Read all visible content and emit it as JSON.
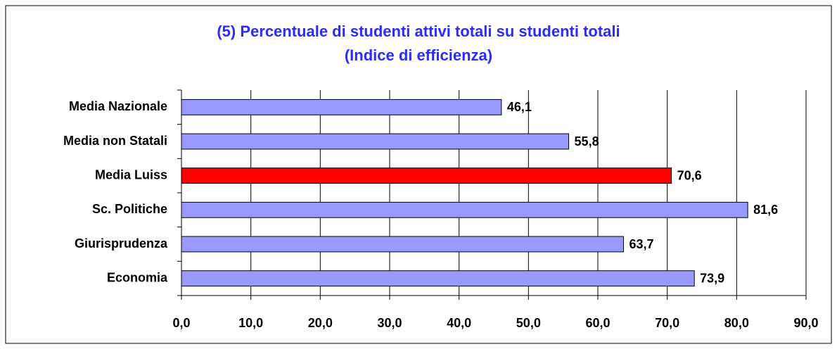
{
  "chart_data": {
    "type": "bar",
    "orientation": "horizontal",
    "title": [
      "(5) Percentuale di studenti attivi totali su studenti totali",
      "(Indice di efficienza)"
    ],
    "categories": [
      "Media Nazionale",
      "Media non Statali",
      "Media Luiss",
      "Sc. Politiche",
      "Giurisprudenza",
      "Economia"
    ],
    "values": [
      46.1,
      55.8,
      70.6,
      81.6,
      63.7,
      73.9
    ],
    "value_labels": [
      "46,1",
      "55,8",
      "70,6",
      "81,6",
      "63,7",
      "73,9"
    ],
    "colors": [
      "#9999ff",
      "#9999ff",
      "#ff0000",
      "#9999ff",
      "#9999ff",
      "#9999ff"
    ],
    "xlim": [
      0,
      90
    ],
    "xticks": [
      {
        "value": 0,
        "label": "0,0"
      },
      {
        "value": 10,
        "label": "10,0"
      },
      {
        "value": 20,
        "label": "20,0"
      },
      {
        "value": 30,
        "label": "30,0"
      },
      {
        "value": 40,
        "label": "40,0"
      },
      {
        "value": 50,
        "label": "50,0"
      },
      {
        "value": 60,
        "label": "60,0"
      },
      {
        "value": 70,
        "label": "70,0"
      },
      {
        "value": 80,
        "label": "80,0"
      },
      {
        "value": 90,
        "label": "90,0"
      }
    ],
    "grid": true
  }
}
